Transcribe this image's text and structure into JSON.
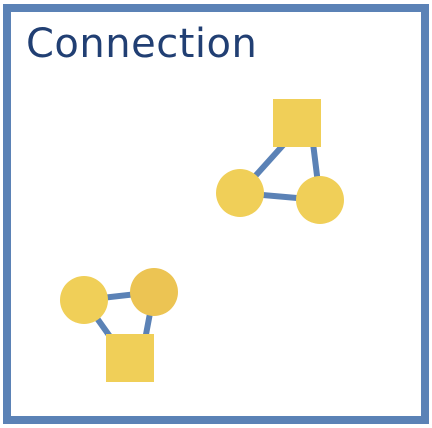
{
  "title": "Connection",
  "colors": {
    "frame": "#5b82b6",
    "title_text": "#213f73",
    "node_fill": "#f0cf58",
    "node_fill_alt": "#ecc453",
    "edge": "#5b82b6",
    "background": "#ffffff"
  },
  "groups": [
    {
      "name": "upper-right-group",
      "nodes": [
        {
          "id": "a",
          "shape": "square"
        },
        {
          "id": "b",
          "shape": "circle"
        },
        {
          "id": "c",
          "shape": "circle"
        }
      ],
      "edges": [
        [
          "a",
          "b"
        ],
        [
          "a",
          "c"
        ],
        [
          "b",
          "c"
        ]
      ]
    },
    {
      "name": "lower-left-group",
      "nodes": [
        {
          "id": "d",
          "shape": "circle"
        },
        {
          "id": "e",
          "shape": "circle"
        },
        {
          "id": "f",
          "shape": "square"
        }
      ],
      "edges": [
        [
          "d",
          "e"
        ],
        [
          "d",
          "f"
        ],
        [
          "e",
          "f"
        ]
      ]
    }
  ]
}
